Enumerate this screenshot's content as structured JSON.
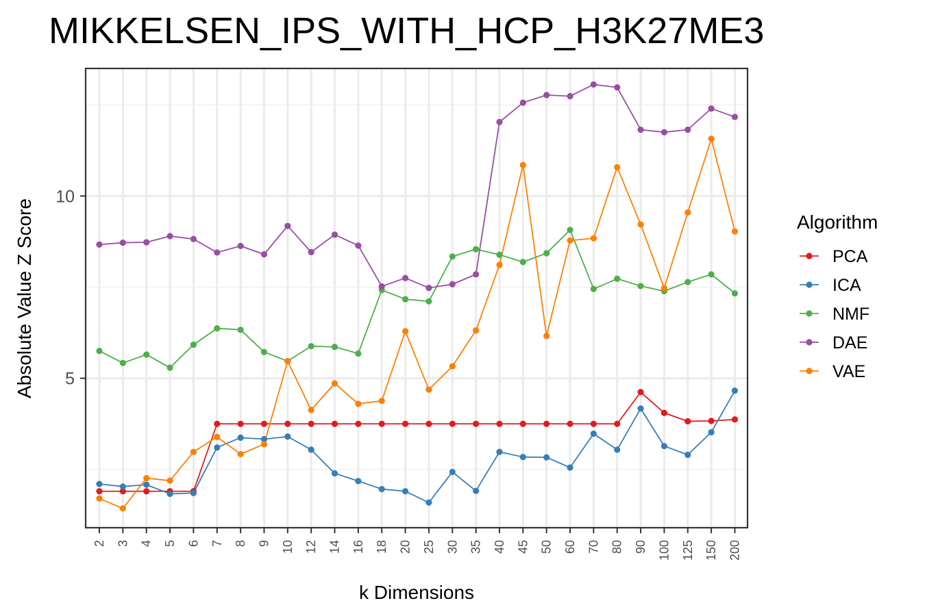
{
  "chart_data": {
    "type": "line",
    "title": "MIKKELSEN_IPS_WITH_HCP_H3K27ME3",
    "xlabel": "k Dimensions",
    "ylabel": "Absolute Value Z Score",
    "categories": [
      "2",
      "3",
      "4",
      "5",
      "6",
      "7",
      "8",
      "9",
      "10",
      "12",
      "14",
      "16",
      "18",
      "20",
      "25",
      "30",
      "35",
      "40",
      "45",
      "50",
      "60",
      "70",
      "80",
      "90",
      "100",
      "125",
      "150",
      "200"
    ],
    "y_ticks": [
      5,
      10
    ],
    "y_tick_labels": [
      "5",
      "10"
    ],
    "ylim": [
      0.9,
      13.5
    ],
    "grid": true,
    "legend": {
      "title": "Algorithm",
      "position": "right"
    },
    "series": [
      {
        "name": "PCA",
        "color": "#e41a1c",
        "values": [
          1.9,
          1.9,
          1.9,
          1.9,
          1.9,
          3.75,
          3.75,
          3.75,
          3.75,
          3.75,
          3.75,
          3.75,
          3.75,
          3.75,
          3.75,
          3.75,
          3.75,
          3.75,
          3.75,
          3.75,
          3.75,
          3.75,
          3.75,
          4.62,
          4.05,
          3.82,
          3.83,
          3.87
        ]
      },
      {
        "name": "ICA",
        "color": "#377eb8",
        "values": [
          2.1,
          2.03,
          2.08,
          1.83,
          1.85,
          3.1,
          3.37,
          3.33,
          3.4,
          3.04,
          2.39,
          2.18,
          1.96,
          1.9,
          1.59,
          2.43,
          1.91,
          2.98,
          2.84,
          2.83,
          2.55,
          3.48,
          3.04,
          4.17,
          3.14,
          2.9,
          3.52,
          4.66
        ]
      },
      {
        "name": "NMF",
        "color": "#4daf4a",
        "values": [
          5.75,
          5.42,
          5.65,
          5.29,
          5.92,
          6.37,
          6.33,
          5.72,
          5.47,
          5.88,
          5.86,
          5.68,
          7.42,
          7.17,
          7.11,
          8.34,
          8.54,
          8.39,
          8.19,
          8.43,
          9.07,
          7.45,
          7.73,
          7.53,
          7.39,
          7.64,
          7.85,
          7.33
        ]
      },
      {
        "name": "DAE",
        "color": "#984ea3",
        "values": [
          8.67,
          8.72,
          8.73,
          8.9,
          8.82,
          8.45,
          8.63,
          8.4,
          9.18,
          8.46,
          8.94,
          8.64,
          7.52,
          7.75,
          7.48,
          7.58,
          7.85,
          12.03,
          12.56,
          12.77,
          12.74,
          13.06,
          12.98,
          11.82,
          11.75,
          11.82,
          12.4,
          12.17
        ]
      },
      {
        "name": "VAE",
        "color": "#ff7f00",
        "values": [
          1.7,
          1.43,
          2.26,
          2.19,
          2.98,
          3.39,
          2.92,
          3.19,
          5.47,
          4.13,
          4.86,
          4.3,
          4.38,
          6.29,
          4.69,
          5.33,
          6.31,
          8.11,
          10.85,
          6.16,
          8.78,
          8.84,
          10.79,
          9.22,
          7.47,
          9.55,
          11.57,
          9.03
        ]
      }
    ]
  }
}
